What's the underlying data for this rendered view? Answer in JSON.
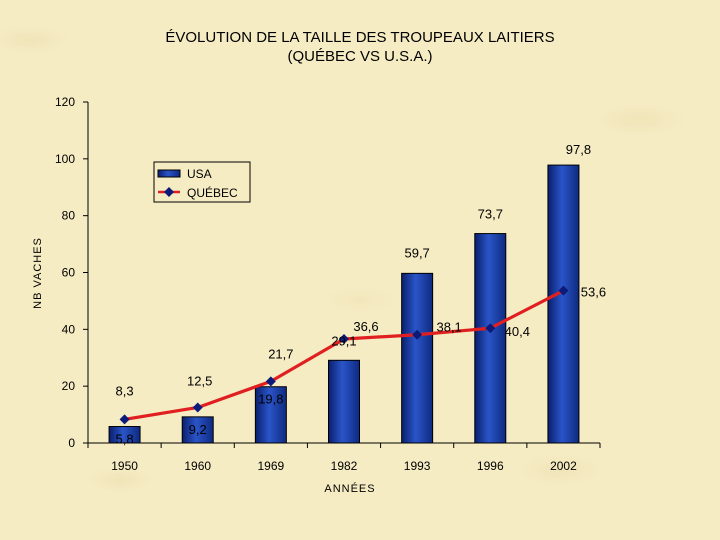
{
  "chart_data": {
    "type": "bar",
    "title": "ÉVOLUTION DE LA TAILLE DES TROUPEAUX LAITIERS",
    "subtitle": "(QUÉBEC VS U.S.A.)",
    "xlabel": "ANNÉES",
    "ylabel": "NB VACHES",
    "categories": [
      "1950",
      "1960",
      "1969",
      "1982",
      "1993",
      "1996",
      "2002"
    ],
    "series": [
      {
        "name": "USA",
        "kind": "bar",
        "values": [
          5.8,
          9.2,
          19.8,
          29.1,
          59.7,
          73.7,
          97.8
        ],
        "labels": [
          "5,8",
          "9,2",
          "19,8",
          "29,1",
          "59,7",
          "73,7",
          "97,8"
        ],
        "color": "#1f3b9a"
      },
      {
        "name": "QUÉBEC",
        "kind": "line",
        "values": [
          8.3,
          12.5,
          21.7,
          36.6,
          38.1,
          40.4,
          53.6
        ],
        "labels": [
          "8,3",
          "12,5",
          "21,7",
          "36,6",
          "38,1",
          "40,4",
          "53,6"
        ],
        "color": "#e02020",
        "marker_color": "#0c1a7a"
      }
    ],
    "yticks": [
      "0",
      "20",
      "40",
      "60",
      "80",
      "100",
      "120"
    ],
    "ylim": [
      0,
      120
    ],
    "grid": false,
    "legend": "upper-left"
  }
}
